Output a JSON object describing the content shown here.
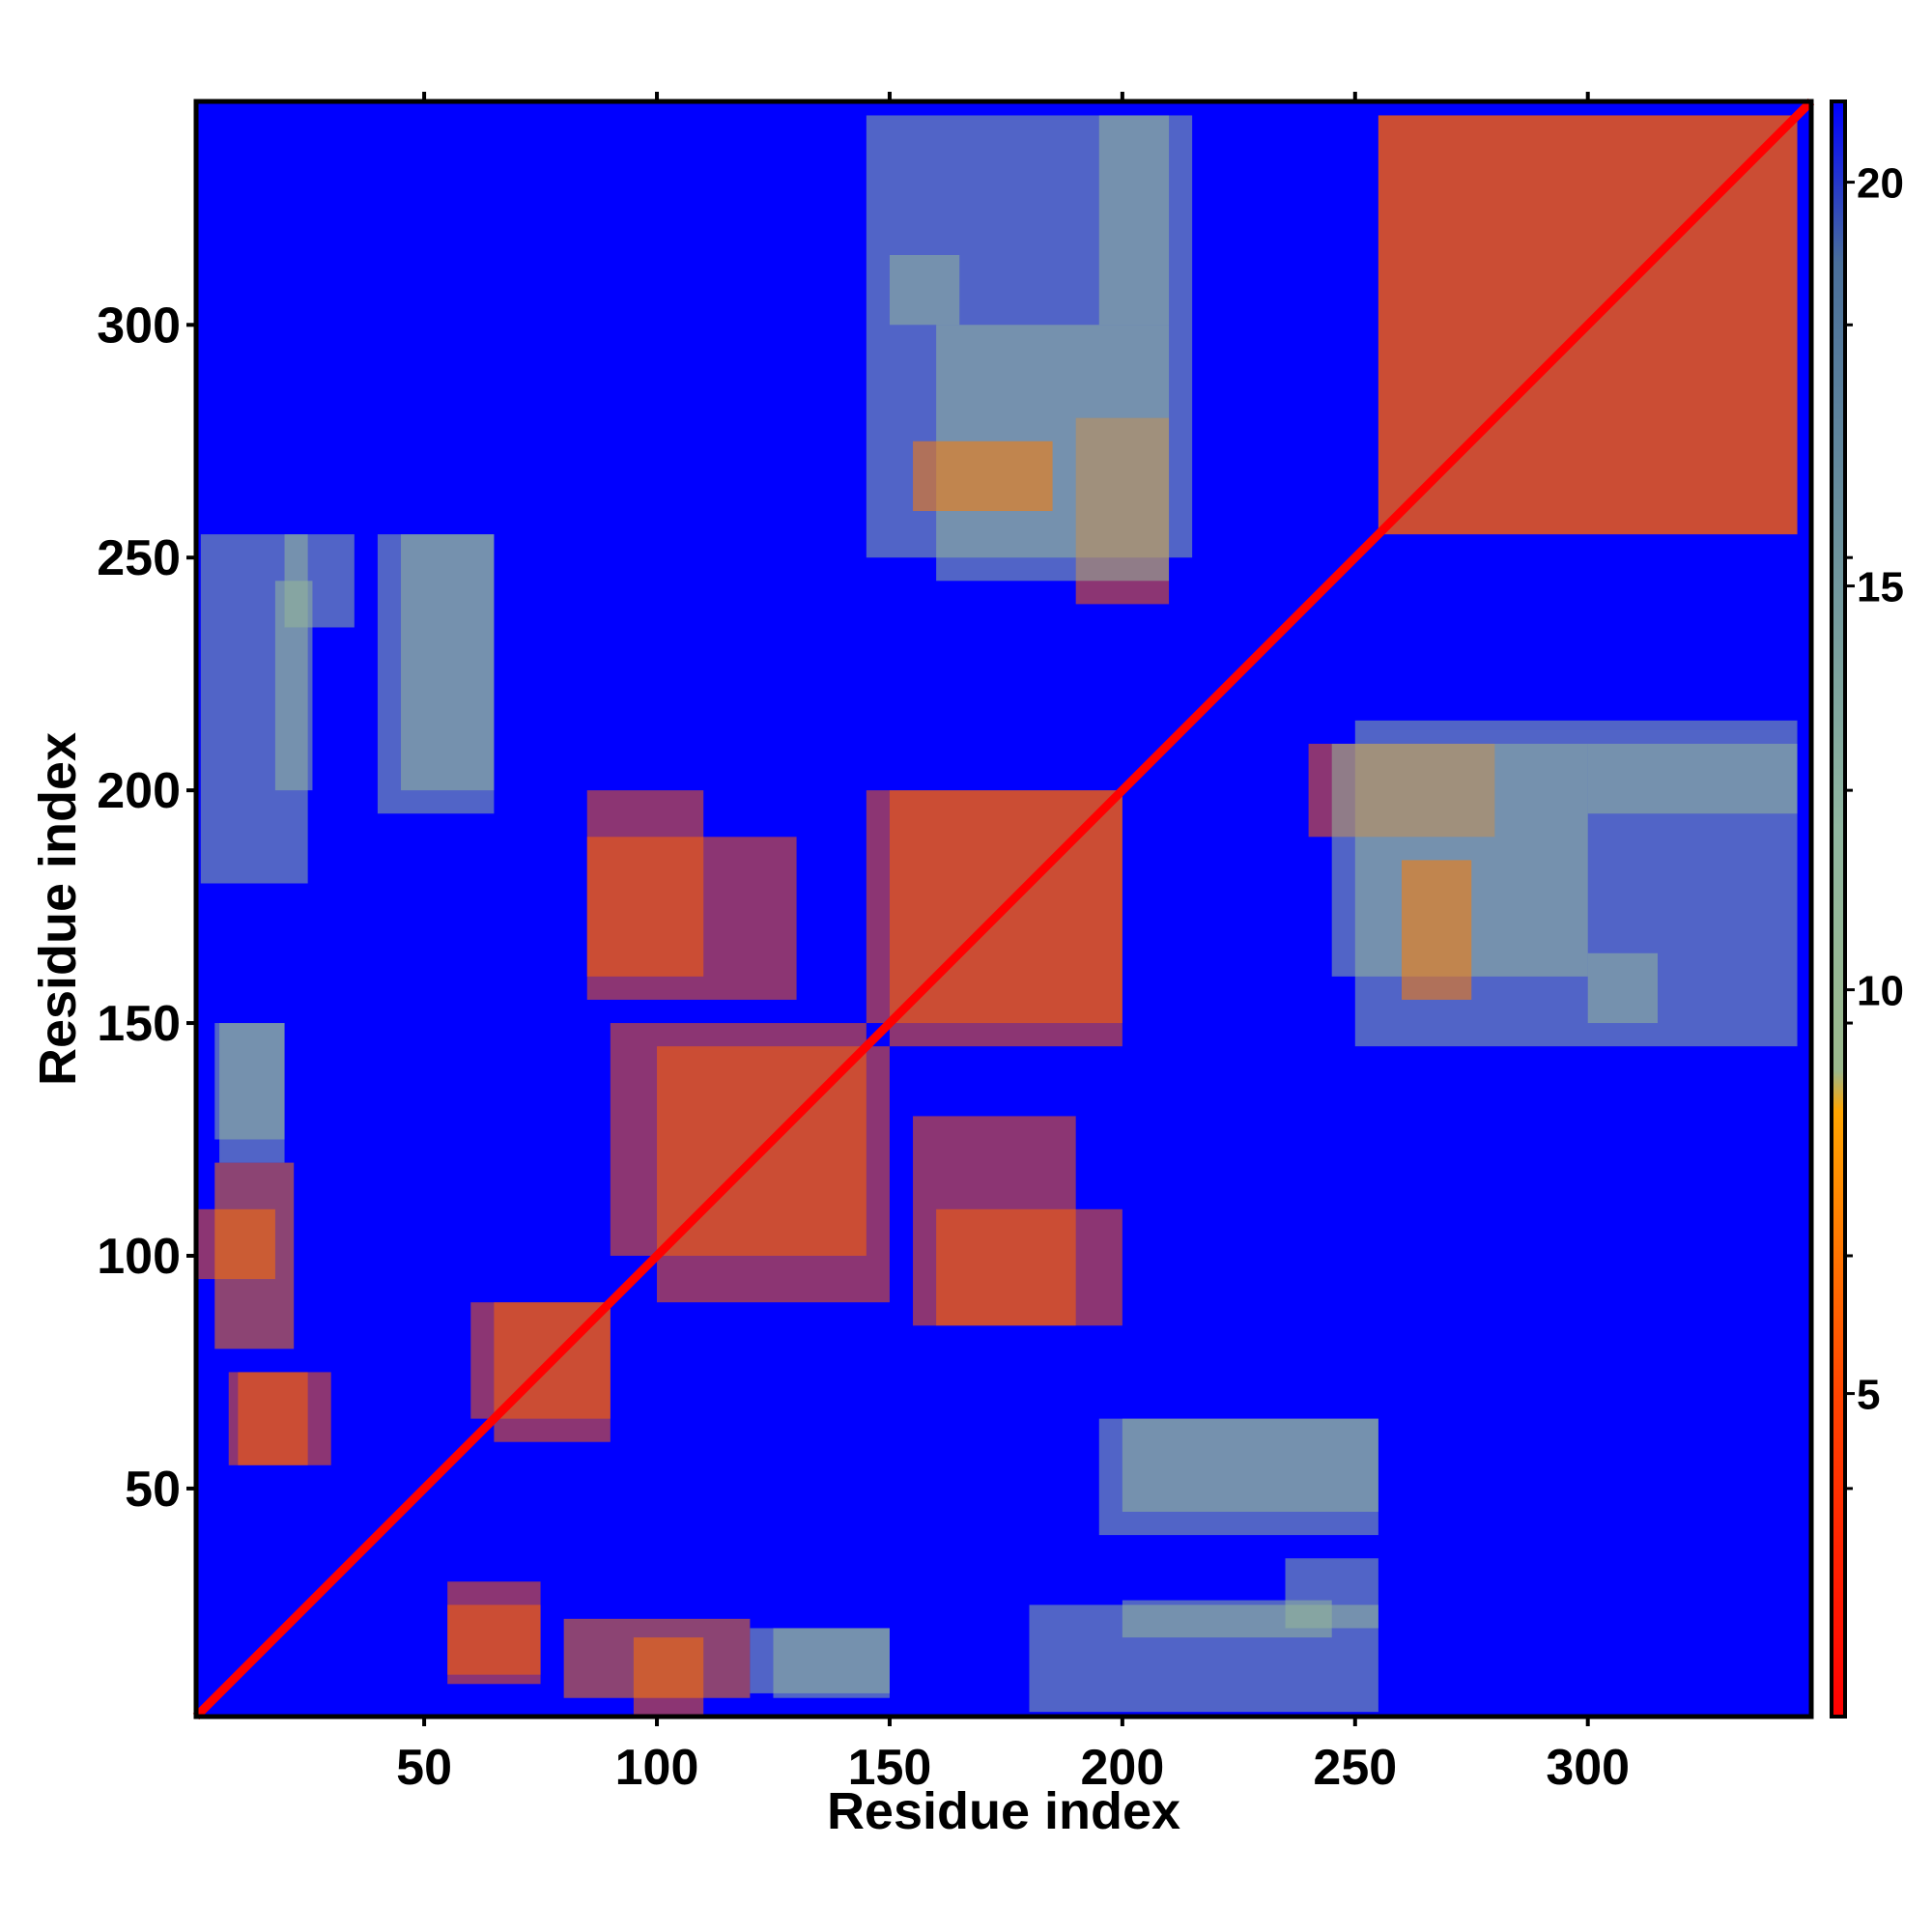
{
  "chart_data": {
    "type": "heatmap",
    "title": "",
    "xlabel": "Residue index",
    "ylabel": "Residue index",
    "n_residues": 348,
    "xlim": [
      1,
      348
    ],
    "ylim": [
      1,
      348
    ],
    "x_ticks": [
      50,
      100,
      150,
      200,
      250,
      300
    ],
    "y_ticks": [
      50,
      100,
      150,
      200,
      250,
      300
    ],
    "colorbar": {
      "ticks": [
        5,
        10,
        15,
        20
      ],
      "range": [
        1,
        21
      ],
      "stops": [
        {
          "value": 1,
          "color": "#ff0000"
        },
        {
          "value": 5,
          "color": "#ff4500"
        },
        {
          "value": 8.5,
          "color": "#ffa500"
        },
        {
          "value": 9,
          "color": "#9bb88c"
        },
        {
          "value": 12,
          "color": "#90b6a0"
        },
        {
          "value": 19,
          "color": "#4a6f9a"
        },
        {
          "value": 21,
          "color": "#0000ff"
        }
      ]
    },
    "background_value": 21,
    "grid": false,
    "legend": "colorbar-right",
    "diagonal": {
      "min": 1,
      "max": 348,
      "value": 1
    },
    "bands": [
      {
        "x": [
          2,
          25
        ],
        "y": [
          180,
          255
        ],
        "value": 11
      },
      {
        "x": [
          40,
          65
        ],
        "y": [
          195,
          255
        ],
        "value": 11
      },
      {
        "x": [
          6,
          20
        ],
        "y": [
          120,
          150
        ],
        "value": 11
      },
      {
        "x": [
          1,
          18
        ],
        "y": [
          95,
          110
        ],
        "value": 6
      },
      {
        "x": [
          10,
          30
        ],
        "y": [
          55,
          75
        ],
        "value": 6
      },
      {
        "x": [
          55,
          75
        ],
        "y": [
          8,
          25
        ],
        "value": 6
      },
      {
        "x": [
          80,
          120
        ],
        "y": [
          5,
          22
        ],
        "value": 7
      },
      {
        "x": [
          125,
          150
        ],
        "y": [
          5,
          20
        ],
        "value": 11
      },
      {
        "x": [
          200,
          245
        ],
        "y": [
          18,
          26
        ],
        "value": 11
      },
      {
        "x": [
          235,
          255
        ],
        "y": [
          20,
          35
        ],
        "value": 11
      },
      {
        "x": [
          200,
          255
        ],
        "y": [
          45,
          65
        ],
        "value": 11
      },
      {
        "x": [
          65,
          90
        ],
        "y": [
          60,
          90
        ],
        "value": 6
      },
      {
        "x": [
          85,
          110
        ],
        "y": [
          160,
          200
        ],
        "value": 6
      },
      {
        "x": [
          100,
          150
        ],
        "y": [
          90,
          145
        ],
        "value": 6
      },
      {
        "x": [
          145,
          200
        ],
        "y": [
          150,
          200
        ],
        "value": 6
      },
      {
        "x": [
          155,
          190
        ],
        "y": [
          85,
          130
        ],
        "value": 6
      },
      {
        "x": [
          145,
          215
        ],
        "y": [
          250,
          345
        ],
        "value": 11
      },
      {
        "x": [
          190,
          210
        ],
        "y": [
          240,
          280
        ],
        "value": 6
      },
      {
        "x": [
          255,
          345
        ],
        "y": [
          255,
          345
        ],
        "value": 6
      },
      {
        "x": [
          245,
          300
        ],
        "y": [
          160,
          210
        ],
        "value": 11
      },
      {
        "x": [
          300,
          345
        ],
        "y": [
          195,
          210
        ],
        "value": 11
      },
      {
        "x": [
          260,
          275
        ],
        "y": [
          155,
          185
        ],
        "value": 7
      },
      {
        "x": [
          300,
          315
        ],
        "y": [
          150,
          165
        ],
        "value": 11
      }
    ]
  }
}
